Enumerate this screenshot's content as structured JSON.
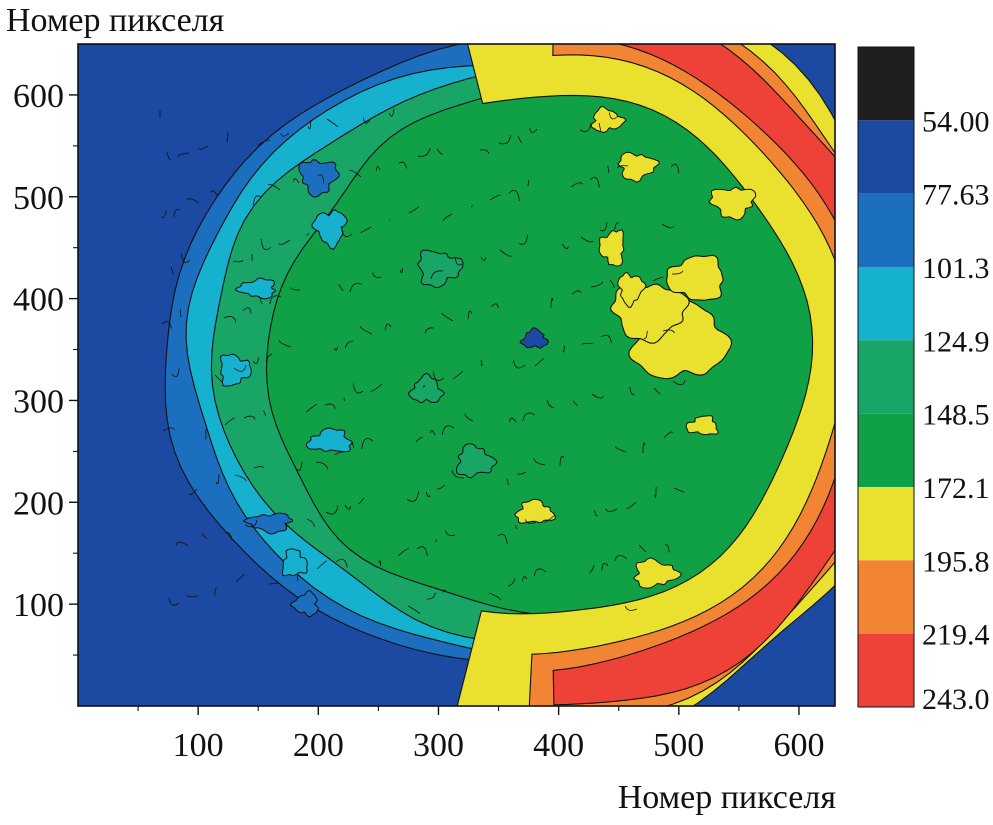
{
  "chart_data": {
    "type": "heatmap",
    "title": "",
    "xlabel": "Номер пикселя",
    "ylabel": "Номер пикселя",
    "xlim": [
      0,
      630
    ],
    "ylim": [
      0,
      650
    ],
    "x_ticks": [
      100,
      200,
      300,
      400,
      500,
      600
    ],
    "y_ticks": [
      100,
      200,
      300,
      400,
      500,
      600
    ],
    "grid": false,
    "colorbar": {
      "placement": "right",
      "ticks": [
        "54.00",
        "77.63",
        "101.3",
        "124.9",
        "148.5",
        "172.1",
        "195.8",
        "219.4",
        "243.0"
      ],
      "bands": [
        {
          "range": [
            "",
            "54.00"
          ],
          "color": "#1f1f1f"
        },
        {
          "range": [
            "54.00",
            "77.63"
          ],
          "color": "#1c4aa3"
        },
        {
          "range": [
            "77.63",
            "101.3"
          ],
          "color": "#1b6fbe"
        },
        {
          "range": [
            "101.3",
            "124.9"
          ],
          "color": "#16b1cf"
        },
        {
          "range": [
            "124.9",
            "148.5"
          ],
          "color": "#18a566"
        },
        {
          "range": [
            "148.5",
            "172.1"
          ],
          "color": "#10a045"
        },
        {
          "range": [
            "172.1",
            "195.8"
          ],
          "color": "#e9e12e"
        },
        {
          "range": [
            "195.8",
            "219.4"
          ],
          "color": "#f28534"
        },
        {
          "range": [
            "219.4",
            "243.0"
          ],
          "color": "#ee4238"
        }
      ]
    },
    "regions": [
      {
        "level": "54.00–77.63",
        "shape": "background",
        "color": "#1c4aa3"
      },
      {
        "level": "77.63–101.3",
        "shape": "disk",
        "center": [
          380,
          345
        ],
        "radius": [
          310,
          305
        ],
        "color": "#1b6fbe"
      },
      {
        "level": "101.3–124.9",
        "shape": "disk",
        "center": [
          385,
          345
        ],
        "radius": [
          295,
          292
        ],
        "color": "#16b1cf"
      },
      {
        "level": "124.9–148.5",
        "shape": "disk",
        "center": [
          395,
          345
        ],
        "radius": [
          280,
          285
        ],
        "color": "#18a566"
      },
      {
        "level": "148.5–172.1",
        "shape": "disk",
        "center": [
          405,
          345
        ],
        "radius": [
          245,
          262
        ],
        "color": "#10a045"
      },
      {
        "level": "172.1–195.8",
        "shape": "crescent",
        "center": [
          400,
          345
        ],
        "color": "#e9e12e"
      },
      {
        "level": "195.8–219.4",
        "shape": "crescent",
        "center": [
          400,
          345
        ],
        "color": "#f28534"
      },
      {
        "level": "219.4–243.0",
        "shape": "crescent",
        "center": [
          400,
          345
        ],
        "color": "#ee4238"
      }
    ],
    "spots": [
      {
        "x": 380,
        "y": 360,
        "level": "54.00–77.63"
      },
      {
        "x": 440,
        "y": 575,
        "level": "172.1–195.8"
      },
      {
        "x": 465,
        "y": 530,
        "level": "172.1–195.8"
      },
      {
        "x": 545,
        "y": 495,
        "level": "172.1–195.8"
      },
      {
        "x": 445,
        "y": 450,
        "level": "172.1–195.8"
      },
      {
        "x": 520,
        "y": 275,
        "level": "172.1–195.8"
      },
      {
        "x": 380,
        "y": 190,
        "level": "172.1–195.8"
      },
      {
        "x": 480,
        "y": 130,
        "level": "172.1–195.8"
      },
      {
        "x": 460,
        "y": 410,
        "level": "172.1–195.8"
      },
      {
        "x": 210,
        "y": 470,
        "level": "101.3–124.9"
      },
      {
        "x": 150,
        "y": 410,
        "level": "101.3–124.9"
      },
      {
        "x": 210,
        "y": 260,
        "level": "101.3–124.9"
      },
      {
        "x": 180,
        "y": 140,
        "level": "101.3–124.9"
      },
      {
        "x": 130,
        "y": 330,
        "level": "101.3–124.9"
      },
      {
        "x": 200,
        "y": 520,
        "level": "77.63–101.3"
      },
      {
        "x": 160,
        "y": 180,
        "level": "77.63–101.3"
      },
      {
        "x": 190,
        "y": 100,
        "level": "77.63–101.3"
      },
      {
        "x": 290,
        "y": 310,
        "level": "124.9–148.5"
      },
      {
        "x": 330,
        "y": 240,
        "level": "124.9–148.5"
      },
      {
        "x": 300,
        "y": 430,
        "level": "124.9–148.5"
      }
    ]
  }
}
